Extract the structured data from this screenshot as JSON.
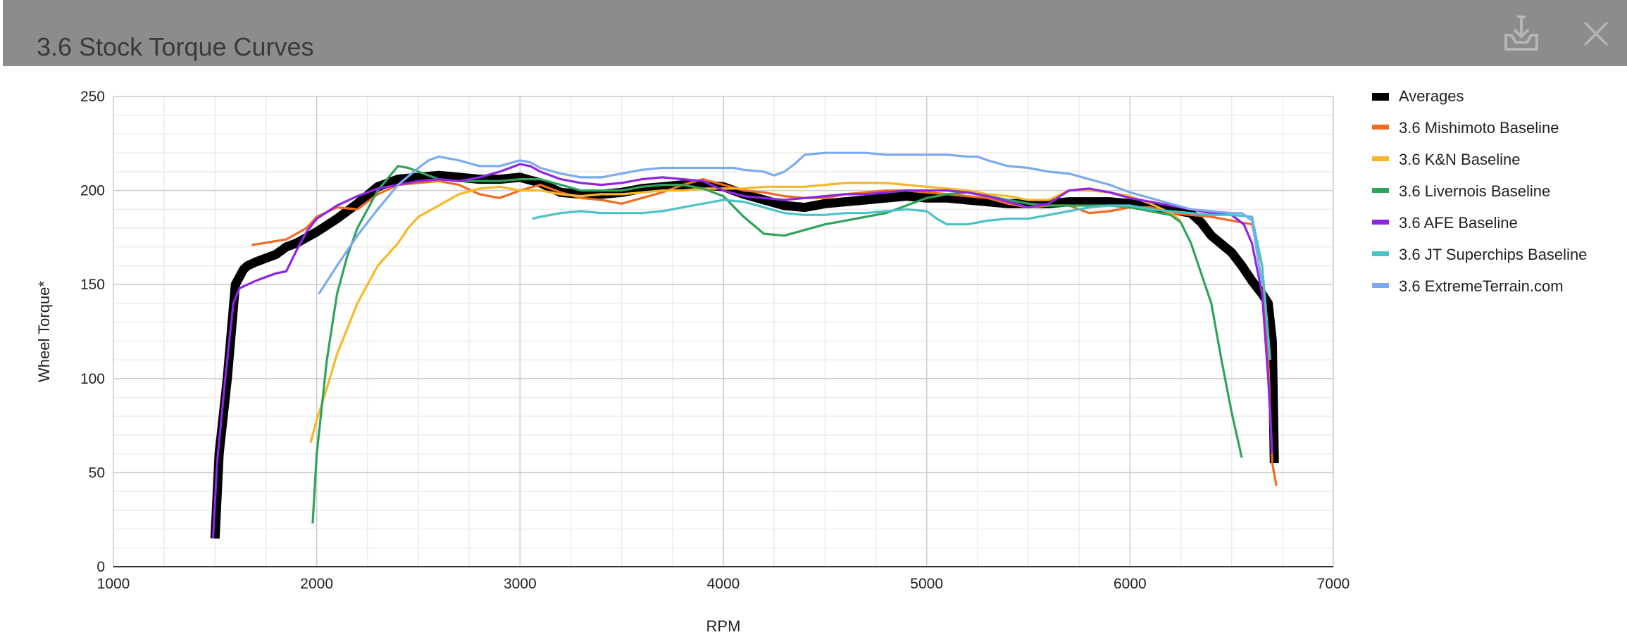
{
  "window": {
    "title": "3.6 Stock Torque Curves",
    "download_icon": "download-icon",
    "close_icon": "close-icon"
  },
  "chart_data": {
    "type": "line",
    "title": "3.6 Stock Torque Curves",
    "xlabel": "RPM",
    "ylabel": "Wheel Torque*",
    "xlim": [
      1000,
      7000
    ],
    "ylim": [
      0,
      250
    ],
    "x_ticks": [
      1000,
      2000,
      3000,
      4000,
      5000,
      6000,
      7000
    ],
    "y_ticks": [
      0,
      50,
      100,
      150,
      200,
      250
    ],
    "grid": true,
    "legend_position": "right",
    "series": [
      {
        "name": "Averages",
        "color": "#000000",
        "x": [
          1500,
          1520,
          1560,
          1600,
          1640,
          1660,
          1700,
          1800,
          1850,
          1900,
          2000,
          2100,
          2200,
          2300,
          2400,
          2500,
          2600,
          2700,
          2800,
          2900,
          3000,
          3100,
          3200,
          3300,
          3400,
          3500,
          3600,
          3700,
          3800,
          3900,
          4000,
          4100,
          4200,
          4300,
          4400,
          4500,
          4600,
          4700,
          4800,
          4900,
          5000,
          5100,
          5200,
          5300,
          5400,
          5500,
          5600,
          5700,
          5800,
          5900,
          6000,
          6100,
          6200,
          6300,
          6350,
          6400,
          6500,
          6550,
          6600,
          6650,
          6680,
          6700,
          6710
        ],
        "y": [
          15,
          60,
          100,
          150,
          158,
          160,
          162,
          166,
          170,
          172,
          178,
          185,
          193,
          202,
          206,
          207,
          208,
          207,
          206,
          206,
          207,
          204,
          199,
          198,
          198,
          199,
          201,
          202,
          203,
          203,
          202,
          198,
          195,
          192,
          191,
          193,
          194,
          195,
          196,
          197,
          196,
          196,
          195,
          194,
          193,
          193,
          193,
          194,
          194,
          194,
          193,
          191,
          190,
          188,
          183,
          176,
          167,
          160,
          152,
          145,
          140,
          120,
          55
        ]
      },
      {
        "name": "3.6 Mishimoto Baseline",
        "color": "#f26b21",
        "x": [
          1680,
          1850,
          1950,
          2000,
          2100,
          2200,
          2300,
          2400,
          2500,
          2600,
          2700,
          2800,
          2900,
          3000,
          3100,
          3200,
          3300,
          3400,
          3500,
          3600,
          3700,
          3800,
          3900,
          4000,
          4100,
          4200,
          4300,
          4400,
          4500,
          4600,
          4700,
          4800,
          4900,
          5000,
          5100,
          5200,
          5300,
          5400,
          5500,
          5600,
          5700,
          5800,
          5900,
          6000,
          6100,
          6200,
          6300,
          6400,
          6500,
          6600,
          6650,
          6680,
          6700,
          6720
        ],
        "y": [
          171,
          174,
          180,
          186,
          191,
          190,
          198,
          203,
          204,
          205,
          203,
          198,
          196,
          200,
          203,
          199,
          196,
          195,
          193,
          196,
          199,
          203,
          206,
          203,
          200,
          199,
          197,
          196,
          196,
          198,
          199,
          200,
          200,
          199,
          198,
          197,
          196,
          193,
          191,
          192,
          192,
          188,
          189,
          191,
          191,
          188,
          187,
          186,
          184,
          182,
          160,
          110,
          55,
          43
        ]
      },
      {
        "name": "3.6 K&N Baseline",
        "color": "#f6b829",
        "x": [
          1970,
          2000,
          2050,
          2100,
          2200,
          2300,
          2400,
          2450,
          2500,
          2600,
          2700,
          2800,
          2900,
          3000,
          3100,
          3200,
          3300,
          3400,
          3500,
          3600,
          3700,
          3800,
          3900,
          4000,
          4100,
          4200,
          4300,
          4400,
          4500,
          4600,
          4700,
          4800,
          4900,
          5000,
          5100,
          5200,
          5300,
          5400,
          5500,
          5600,
          5700,
          5800,
          5900,
          6000,
          6100,
          6200,
          6250
        ],
        "y": [
          66,
          78,
          95,
          113,
          140,
          160,
          172,
          180,
          186,
          192,
          198,
          201,
          202,
          200,
          200,
          198,
          197,
          198,
          198,
          199,
          200,
          200,
          201,
          201,
          201,
          202,
          202,
          202,
          203,
          204,
          204,
          204,
          203,
          202,
          201,
          200,
          198,
          197,
          195,
          195,
          200,
          200,
          199,
          197,
          193,
          188,
          184
        ]
      },
      {
        "name": "3.6 Livernois Baseline",
        "color": "#2ea35a",
        "x": [
          1980,
          2000,
          2050,
          2100,
          2150,
          2200,
          2300,
          2400,
          2450,
          2500,
          2600,
          2700,
          2800,
          2900,
          3000,
          3100,
          3200,
          3300,
          3400,
          3500,
          3600,
          3700,
          3800,
          3900,
          4000,
          4100,
          4200,
          4300,
          4400,
          4500,
          4600,
          4700,
          4800,
          4900,
          5000,
          5100,
          5200,
          5300,
          5400,
          5500,
          5600,
          5700,
          5800,
          5900,
          6000,
          6100,
          6200,
          6250,
          6300,
          6400,
          6450,
          6500,
          6550
        ],
        "y": [
          23,
          60,
          110,
          145,
          165,
          180,
          200,
          213,
          212,
          210,
          206,
          205,
          205,
          205,
          206,
          206,
          203,
          200,
          200,
          200,
          202,
          203,
          203,
          201,
          197,
          186,
          177,
          176,
          179,
          182,
          184,
          186,
          188,
          192,
          196,
          198,
          199,
          197,
          195,
          193,
          192,
          192,
          192,
          192,
          191,
          189,
          187,
          183,
          172,
          140,
          110,
          82,
          58
        ]
      },
      {
        "name": "3.6 AFE Baseline",
        "color": "#8f24e6",
        "x": [
          1490,
          1510,
          1550,
          1590,
          1620,
          1660,
          1700,
          1800,
          1850,
          1900,
          1950,
          2000,
          2100,
          2200,
          2300,
          2400,
          2500,
          2600,
          2700,
          2800,
          2900,
          3000,
          3050,
          3100,
          3200,
          3300,
          3400,
          3500,
          3600,
          3700,
          3800,
          3900,
          4000,
          4100,
          4200,
          4300,
          4400,
          4500,
          4600,
          4700,
          4800,
          4900,
          5000,
          5100,
          5200,
          5300,
          5400,
          5500,
          5600,
          5700,
          5800,
          5900,
          6000,
          6100,
          6200,
          6300,
          6400,
          6500,
          6560,
          6600,
          6650,
          6680,
          6700
        ],
        "y": [
          15,
          55,
          100,
          140,
          148,
          150,
          152,
          156,
          157,
          168,
          178,
          185,
          192,
          197,
          201,
          203,
          205,
          206,
          205,
          207,
          210,
          214,
          213,
          210,
          206,
          204,
          203,
          204,
          206,
          207,
          206,
          205,
          200,
          197,
          196,
          195,
          196,
          197,
          198,
          198,
          199,
          200,
          200,
          200,
          199,
          197,
          194,
          191,
          193,
          200,
          201,
          199,
          196,
          194,
          192,
          190,
          188,
          187,
          182,
          172,
          145,
          100,
          60
        ]
      },
      {
        "name": "3.6 JT Superchips Baseline",
        "color": "#4bc3c6",
        "x": [
          3060,
          3100,
          3200,
          3300,
          3400,
          3500,
          3600,
          3700,
          3800,
          3900,
          4000,
          4100,
          4200,
          4300,
          4400,
          4500,
          4600,
          4700,
          4800,
          4900,
          5000,
          5050,
          5100,
          5200,
          5300,
          5400,
          5500,
          5600,
          5700,
          5800,
          5900,
          6000,
          6100,
          6200,
          6300,
          6400,
          6500,
          6600,
          6650,
          6690
        ],
        "y": [
          185,
          186,
          188,
          189,
          188,
          188,
          188,
          189,
          191,
          193,
          195,
          194,
          191,
          188,
          187,
          187,
          188,
          188,
          189,
          190,
          189,
          185,
          182,
          182,
          184,
          185,
          185,
          187,
          189,
          191,
          192,
          192,
          190,
          189,
          188,
          187,
          187,
          186,
          160,
          110
        ]
      },
      {
        "name": "3.6 ExtremeTerrain.com",
        "color": "#7baaf1",
        "x": [
          2010,
          2100,
          2200,
          2300,
          2400,
          2500,
          2550,
          2600,
          2700,
          2800,
          2900,
          3000,
          3050,
          3100,
          3200,
          3300,
          3400,
          3450,
          3500,
          3600,
          3700,
          3800,
          3900,
          4000,
          4050,
          4100,
          4200,
          4250,
          4300,
          4350,
          4400,
          4500,
          4600,
          4700,
          4800,
          4900,
          5000,
          5100,
          5200,
          5250,
          5300,
          5400,
          5500,
          5600,
          5700,
          5800,
          5900,
          6000,
          6100,
          6200,
          6300,
          6400,
          6500,
          6550,
          6600,
          6650
        ],
        "y": [
          145,
          160,
          176,
          190,
          203,
          212,
          216,
          218,
          216,
          213,
          213,
          216,
          215,
          212,
          209,
          207,
          207,
          208,
          209,
          211,
          212,
          212,
          212,
          212,
          212,
          211,
          210,
          208,
          210,
          214,
          219,
          220,
          220,
          220,
          219,
          219,
          219,
          219,
          218,
          218,
          216,
          213,
          212,
          210,
          209,
          206,
          203,
          199,
          196,
          193,
          190,
          189,
          188,
          188,
          184,
          150
        ]
      }
    ]
  }
}
